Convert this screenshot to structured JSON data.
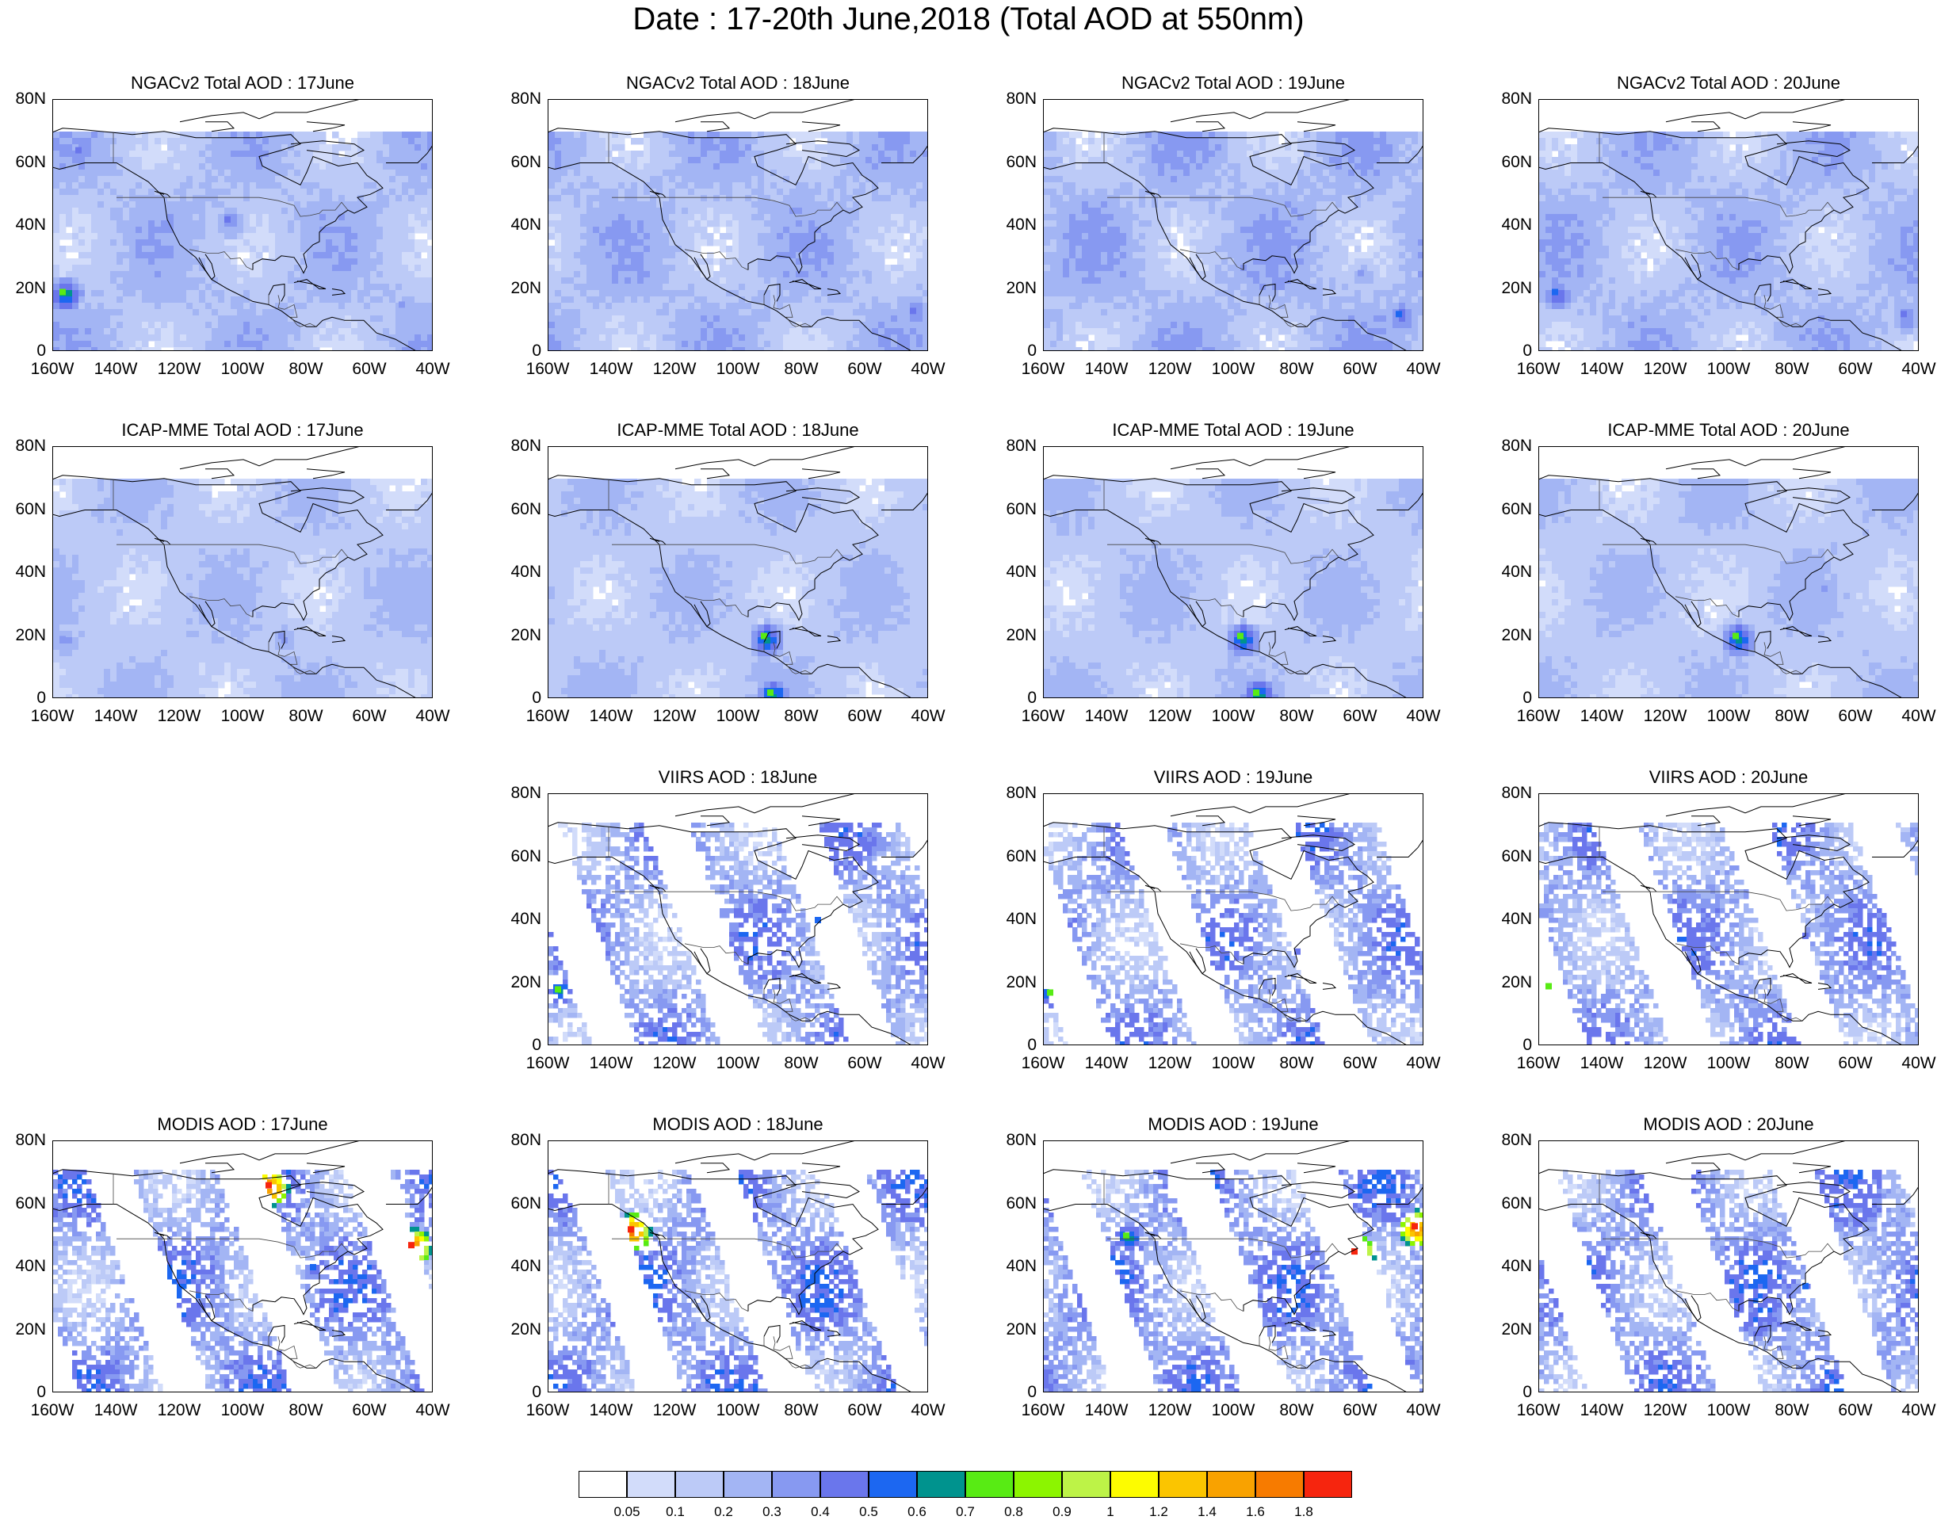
{
  "title": "Date : 17-20th June,2018 (Total AOD at 550nm)",
  "x_ticks": [
    "160W",
    "140W",
    "120W",
    "100W",
    "80W",
    "60W",
    "40W"
  ],
  "y_ticks": [
    "80N",
    "60N",
    "40N",
    "20N",
    "0"
  ],
  "panels": [
    {
      "id": "ngac-17",
      "title": "NGACv2 Total AOD : 17June",
      "product": "model",
      "density": 0.28,
      "blobs": [
        [
          -152,
          64,
          0.4
        ],
        [
          -105,
          42,
          0.4
        ],
        [
          -157,
          19,
          0.7
        ],
        [
          -50,
          15,
          0.3
        ]
      ]
    },
    {
      "id": "ngac-18",
      "title": "NGACv2 Total AOD : 18June",
      "product": "model",
      "density": 0.3,
      "blobs": [
        [
          -45,
          13,
          0.45
        ],
        [
          -60,
          25,
          0.25
        ]
      ]
    },
    {
      "id": "ngac-19",
      "title": "NGACv2 Total AOD : 19June",
      "product": "model",
      "density": 0.32,
      "blobs": [
        [
          -48,
          12,
          0.5
        ],
        [
          -60,
          25,
          0.3
        ]
      ]
    },
    {
      "id": "ngac-20",
      "title": "NGACv2 Total AOD : 20June",
      "product": "model",
      "density": 0.3,
      "blobs": [
        [
          -155,
          19,
          0.5
        ],
        [
          -45,
          12,
          0.45
        ]
      ]
    },
    {
      "id": "icap-17",
      "title": "ICAP-MME Total AOD : 17June",
      "product": "model",
      "density": 0.22,
      "blobs": [
        [
          -88,
          20,
          0.35
        ],
        [
          -157,
          19,
          0.35
        ]
      ]
    },
    {
      "id": "icap-18",
      "title": "ICAP-MME Total AOD : 18June",
      "product": "model",
      "density": 0.22,
      "blobs": [
        [
          -92,
          20,
          0.7
        ],
        [
          -90,
          2,
          0.7
        ]
      ]
    },
    {
      "id": "icap-19",
      "title": "ICAP-MME Total AOD : 19June",
      "product": "model",
      "density": 0.22,
      "blobs": [
        [
          -98,
          20,
          0.7
        ],
        [
          -93,
          2,
          0.7
        ]
      ]
    },
    {
      "id": "icap-20",
      "title": "ICAP-MME Total AOD : 20June",
      "product": "model",
      "density": 0.22,
      "blobs": [
        [
          -98,
          20,
          0.7
        ],
        [
          -70,
          35,
          0.3
        ]
      ]
    },
    {
      "id": "empty-17",
      "title": "",
      "product": "none",
      "density": 0,
      "blobs": []
    },
    {
      "id": "viirs-18",
      "title": "VIIRS AOD : 18June",
      "product": "satellite",
      "density": 0.45,
      "blobs": [
        [
          -75,
          40,
          0.5
        ],
        [
          -157,
          18,
          0.7
        ]
      ]
    },
    {
      "id": "viirs-19",
      "title": "VIIRS AOD : 19June",
      "product": "satellite",
      "density": 0.45,
      "blobs": [
        [
          -158,
          17,
          0.7
        ],
        [
          -80,
          30,
          0.4
        ]
      ]
    },
    {
      "id": "viirs-20",
      "title": "VIIRS AOD : 20June",
      "product": "satellite",
      "density": 0.45,
      "blobs": [
        [
          -157,
          19,
          0.7
        ],
        [
          -76,
          35,
          0.45
        ]
      ]
    },
    {
      "id": "modis-17",
      "title": "MODIS AOD : 17June",
      "product": "satellite",
      "density": 0.5,
      "blobs": [
        [
          -92,
          66,
          1.8
        ],
        [
          -47,
          47,
          1.8
        ],
        [
          -78,
          40,
          0.5
        ]
      ]
    },
    {
      "id": "modis-18",
      "title": "MODIS AOD : 18June",
      "product": "satellite",
      "density": 0.5,
      "blobs": [
        [
          -134,
          52,
          1.8
        ],
        [
          -76,
          38,
          0.5
        ]
      ]
    },
    {
      "id": "modis-19",
      "title": "MODIS AOD : 19June",
      "product": "satellite",
      "density": 0.5,
      "blobs": [
        [
          -43,
          53,
          1.8
        ],
        [
          -62,
          45,
          1.8
        ],
        [
          -134,
          50,
          0.7
        ]
      ]
    },
    {
      "id": "modis-20",
      "title": "MODIS AOD : 20June",
      "product": "satellite",
      "density": 0.5,
      "blobs": [
        [
          -76,
          34,
          0.5
        ]
      ]
    }
  ],
  "colorbar": {
    "labels": [
      "0.05",
      "0.1",
      "0.2",
      "0.3",
      "0.4",
      "0.5",
      "0.6",
      "0.7",
      "0.8",
      "0.9",
      "1",
      "1.2",
      "1.4",
      "1.6",
      "1.8"
    ],
    "colors": [
      "#ffffff",
      "#d2dcfa",
      "#bccaf7",
      "#a3b5f4",
      "#8799f1",
      "#6a76ec",
      "#1c67f1",
      "#00938e",
      "#58eb14",
      "#8cf500",
      "#bdf347",
      "#fdfc00",
      "#fbc500",
      "#f9a200",
      "#f77b00",
      "#f6250e"
    ]
  }
}
